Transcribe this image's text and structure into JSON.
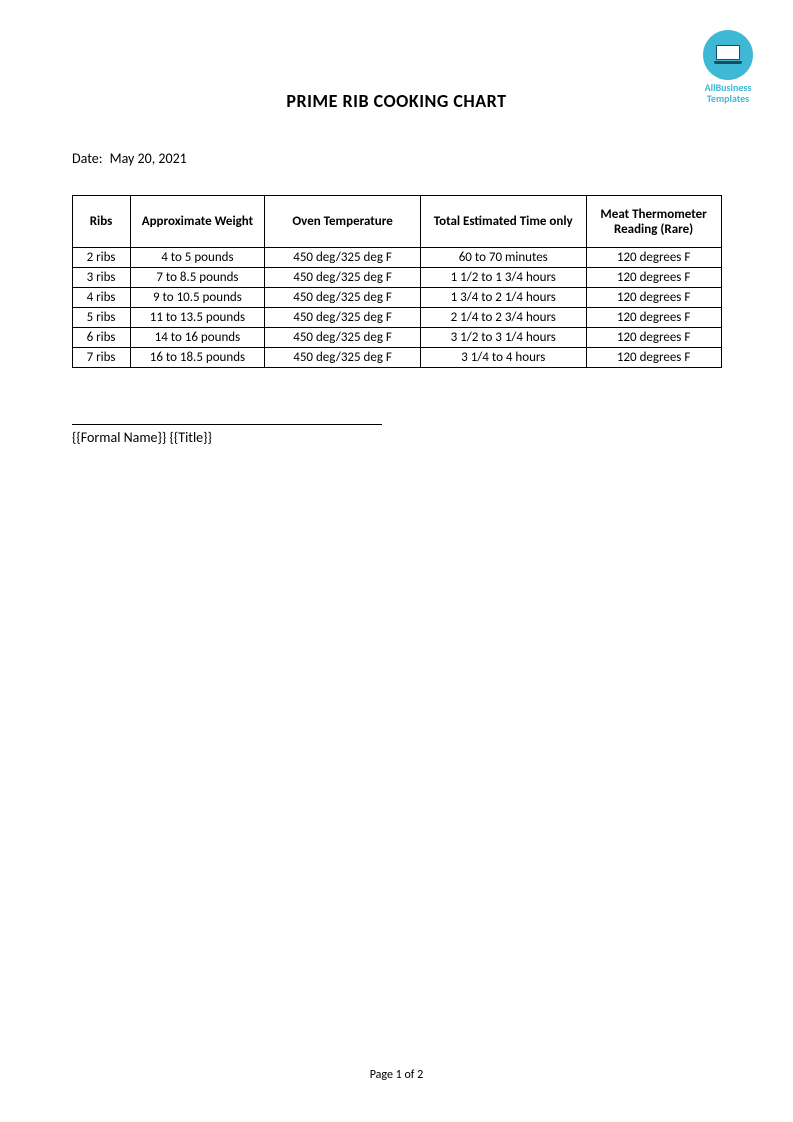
{
  "logo": {
    "line1": "AllBusiness",
    "line2": "Templates"
  },
  "title": "PRIME RIB COOKING CHART",
  "date": {
    "label": "Date:",
    "value": "May 20, 2021"
  },
  "table": {
    "columns": [
      "Ribs",
      "Approximate Weight",
      "Oven Temperature",
      "Total Estimated Time only",
      "Meat Thermometer Reading (Rare)"
    ],
    "rows": [
      [
        "2 ribs",
        "4 to 5 pounds",
        "450 deg/325 deg F",
        "60 to 70 minutes",
        "120 degrees F"
      ],
      [
        "3 ribs",
        "7 to 8.5 pounds",
        "450 deg/325 deg F",
        "1 1/2 to 1 3/4 hours",
        "120 degrees F"
      ],
      [
        "4 ribs",
        "9 to 10.5 pounds",
        "450 deg/325 deg F",
        "1 3/4 to 2 1/4 hours",
        "120 degrees F"
      ],
      [
        "5 ribs",
        "11 to 13.5 pounds",
        "450 deg/325 deg F",
        "2 1/4 to 2 3/4 hours",
        "120 degrees F"
      ],
      [
        "6 ribs",
        "14 to 16 pounds",
        "450 deg/325 deg F",
        "3 1/2 to 3 1/4 hours",
        "120 degrees F"
      ],
      [
        "7 ribs",
        "16 to 18.5 pounds",
        "450 deg/325 deg F",
        "3 1/4 to 4  hours",
        "120 degrees F"
      ]
    ]
  },
  "signature": {
    "placeholder": "{{Formal Name}} {{Title}}"
  },
  "footer": {
    "text": "Page 1 of 2"
  }
}
